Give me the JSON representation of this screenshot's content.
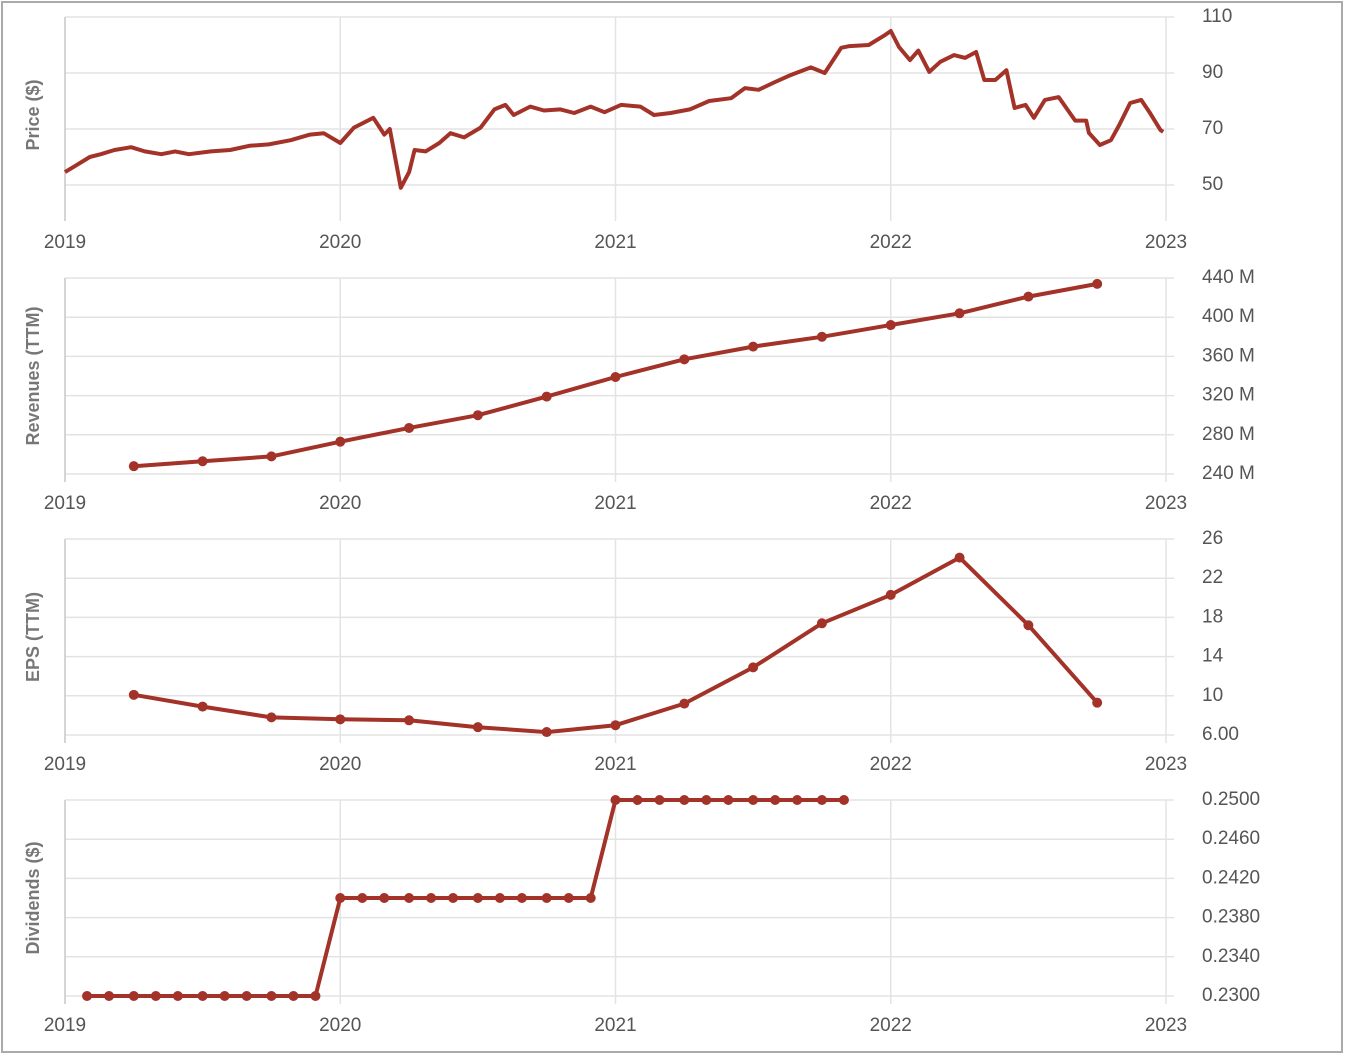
{
  "chart_data": [
    {
      "type": "line",
      "ylabel": "Price ($)",
      "color": "#a33228",
      "markers": false,
      "grid": true,
      "xlim": [
        2019,
        2023
      ],
      "xticks": [
        2019,
        2020,
        2021,
        2022,
        2023
      ],
      "ylim": [
        40,
        110
      ],
      "yticks": [
        50,
        70,
        90,
        110
      ],
      "x": [
        2019.0,
        2019.04,
        2019.09,
        2019.13,
        2019.18,
        2019.24,
        2019.29,
        2019.35,
        2019.4,
        2019.45,
        2019.53,
        2019.6,
        2019.67,
        2019.74,
        2019.82,
        2019.89,
        2019.94,
        2020.0,
        2020.05,
        2020.12,
        2020.16,
        2020.18,
        2020.22,
        2020.25,
        2020.27,
        2020.31,
        2020.36,
        2020.4,
        2020.45,
        2020.51,
        2020.56,
        2020.6,
        2020.63,
        2020.69,
        2020.74,
        2020.8,
        2020.85,
        2020.91,
        2020.96,
        2021.02,
        2021.09,
        2021.14,
        2021.2,
        2021.27,
        2021.34,
        2021.42,
        2021.47,
        2021.52,
        2021.58,
        2021.63,
        2021.71,
        2021.76,
        2021.82,
        2021.85,
        2021.92,
        2021.98,
        2022.0,
        2022.03,
        2022.07,
        2022.1,
        2022.14,
        2022.18,
        2022.23,
        2022.27,
        2022.31,
        2022.34,
        2022.38,
        2022.42,
        2022.45,
        2022.49,
        2022.52,
        2022.56,
        2022.61,
        2022.67,
        2022.71,
        2022.72,
        2022.76,
        2022.8,
        2022.83,
        2022.87,
        2022.91,
        2022.94,
        2022.98,
        2022.99
      ],
      "values": [
        54.6,
        57,
        60,
        61,
        62.5,
        63.5,
        62,
        61,
        62,
        61,
        62,
        62.5,
        64,
        64.5,
        66,
        68,
        68.5,
        65,
        70.5,
        74,
        68,
        70,
        49,
        54.6,
        62.5,
        62,
        65,
        68.5,
        67,
        70.5,
        77,
        78.6,
        75,
        78,
        76.6,
        77,
        75.7,
        78,
        76,
        78.6,
        78,
        75,
        75.7,
        77,
        80,
        81,
        84.6,
        84,
        86.8,
        89,
        92,
        90,
        99,
        99.6,
        100,
        103.6,
        105,
        99.3,
        94.6,
        98,
        90.4,
        94,
        96.4,
        95.4,
        97.5,
        87.5,
        87.5,
        91,
        77.5,
        78.6,
        74,
        80.4,
        81.4,
        73,
        73,
        68.6,
        64.3,
        66,
        71.4,
        79.3,
        80.4,
        76,
        69.6,
        69
      ]
    },
    {
      "type": "line",
      "ylabel": "Revenues (TTM)",
      "color": "#a33228",
      "markers": true,
      "grid": true,
      "xlim": [
        2019,
        2023
      ],
      "xticks": [
        2019,
        2020,
        2021,
        2022,
        2023
      ],
      "ylim": [
        240,
        440
      ],
      "yticks": [
        {
          "value": 240,
          "label": "240 M"
        },
        {
          "value": 280,
          "label": "280 M"
        },
        {
          "value": 320,
          "label": "320 M"
        },
        {
          "value": 360,
          "label": "360 M"
        },
        {
          "value": 400,
          "label": "400 M"
        },
        {
          "value": 440,
          "label": "440 M"
        }
      ],
      "x": [
        2019.25,
        2019.5,
        2019.75,
        2020,
        2020.25,
        2020.5,
        2020.75,
        2021,
        2021.25,
        2021.5,
        2021.75,
        2022,
        2022.25,
        2022.5,
        2022.75
      ],
      "values": [
        248,
        253,
        258,
        273,
        287,
        300,
        319,
        339,
        357,
        370,
        380,
        392,
        404,
        421,
        434
      ]
    },
    {
      "type": "line",
      "ylabel": "EPS (TTM)",
      "color": "#a33228",
      "markers": true,
      "grid": true,
      "xlim": [
        2019,
        2023
      ],
      "xticks": [
        2019,
        2020,
        2021,
        2022,
        2023
      ],
      "ylim": [
        6,
        26
      ],
      "yticks": [
        {
          "value": 6,
          "label": "6.00"
        },
        10,
        14,
        18,
        22,
        26
      ],
      "x": [
        2019.25,
        2019.5,
        2019.75,
        2020,
        2020.25,
        2020.5,
        2020.75,
        2021,
        2021.25,
        2021.5,
        2021.75,
        2022,
        2022.25,
        2022.5,
        2022.75
      ],
      "values": [
        10.1,
        8.9,
        7.8,
        7.6,
        7.5,
        6.8,
        6.3,
        7.0,
        9.2,
        12.9,
        17.4,
        20.3,
        24.1,
        17.2,
        9.3
      ]
    },
    {
      "type": "line",
      "ylabel": "Dividends ($)",
      "color": "#a33228",
      "markers": true,
      "grid": true,
      "xlim": [
        2019,
        2023
      ],
      "xticks": [
        2019,
        2020,
        2021,
        2022,
        2023
      ],
      "ylim": [
        0.23,
        0.25
      ],
      "yticks": [
        {
          "value": 0.23,
          "label": "0.2300"
        },
        {
          "value": 0.234,
          "label": "0.2340"
        },
        {
          "value": 0.238,
          "label": "0.2380"
        },
        {
          "value": 0.242,
          "label": "0.2420"
        },
        {
          "value": 0.246,
          "label": "0.2460"
        },
        {
          "value": 0.25,
          "label": "0.2500"
        }
      ],
      "x": [
        2019.08,
        2019.16,
        2019.25,
        2019.33,
        2019.41,
        2019.5,
        2019.58,
        2019.66,
        2019.75,
        2019.83,
        2019.91,
        2020.0,
        2020.08,
        2020.16,
        2020.25,
        2020.33,
        2020.41,
        2020.5,
        2020.58,
        2020.66,
        2020.75,
        2020.83,
        2020.91,
        2021.0,
        2021.08,
        2021.16,
        2021.25,
        2021.33,
        2021.41,
        2021.5,
        2021.58,
        2021.66,
        2021.75,
        2021.83
      ],
      "values": [
        0.23,
        0.23,
        0.23,
        0.23,
        0.23,
        0.23,
        0.23,
        0.23,
        0.23,
        0.23,
        0.23,
        0.24,
        0.24,
        0.24,
        0.24,
        0.24,
        0.24,
        0.24,
        0.24,
        0.24,
        0.24,
        0.24,
        0.24,
        0.25,
        0.25,
        0.25,
        0.25,
        0.25,
        0.25,
        0.25,
        0.25,
        0.25,
        0.25,
        0.25
      ]
    }
  ]
}
